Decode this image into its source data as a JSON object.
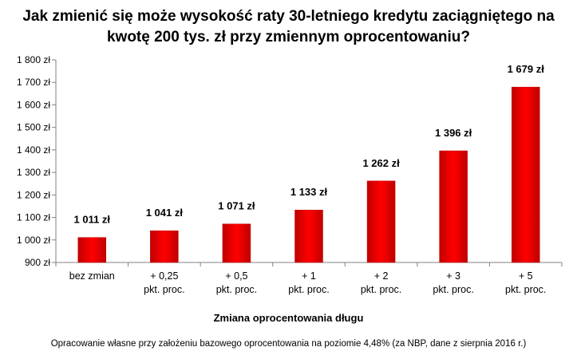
{
  "chart_data": {
    "type": "bar",
    "title_lines": [
      "Jak zmienić się może wysokość raty 30-letniego kredytu zaciągniętego na",
      "kwotę 200 tys. zł przy zmiennym oprocentowaniu?"
    ],
    "xlabel": "Zmiana oprocentowania długu",
    "ylabel": "",
    "categories": [
      [
        "bez zmian"
      ],
      [
        "+ 0,25",
        "pkt. proc."
      ],
      [
        "+ 0,5",
        "pkt. proc."
      ],
      [
        "+ 1",
        "pkt. proc."
      ],
      [
        "+ 2",
        "pkt. proc."
      ],
      [
        "+ 3",
        "pkt. proc."
      ],
      [
        "+ 5",
        "pkt. proc."
      ]
    ],
    "values": [
      1011,
      1041,
      1071,
      1133,
      1262,
      1396,
      1679
    ],
    "data_labels": [
      "1 011 zł",
      "1 041 zł",
      "1 071 zł",
      "1 133 zł",
      "1 262 zł",
      "1 396 zł",
      "1 679 zł"
    ],
    "ylim": [
      900,
      1800
    ],
    "y_ticks": [
      900,
      1000,
      1100,
      1200,
      1300,
      1400,
      1500,
      1600,
      1700,
      1800
    ],
    "y_tick_labels": [
      "900 zł",
      "1 000 zł",
      "1 100 zł",
      "1 200 zł",
      "1 300 zł",
      "1 400 zł",
      "1 500 zł",
      "1 600 zł",
      "1 700 zł",
      "1 800 zł"
    ],
    "bar_color": "#ff0000",
    "bar_color_dark": "#c00000",
    "grid": false,
    "legend": "none"
  },
  "footnote": "Opracowanie własne przy założeniu bazowego oprocentowania na poziomie 4,48% (za NBP, dane z sierpnia 2016 r.)"
}
